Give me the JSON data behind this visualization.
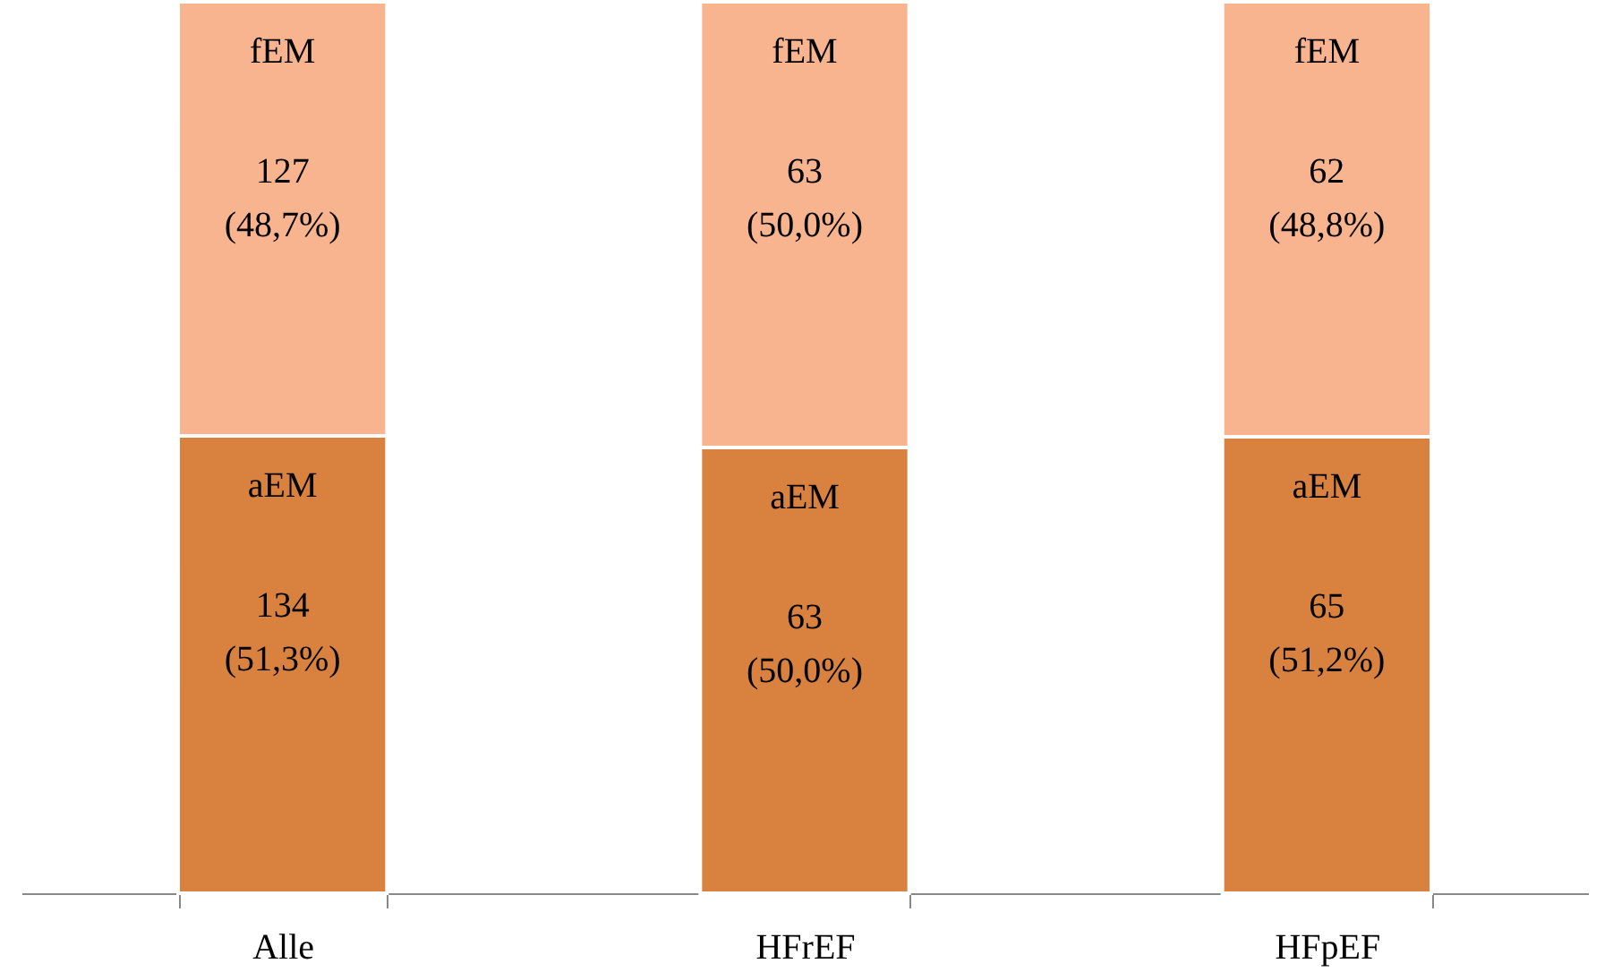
{
  "chart_data": {
    "type": "bar",
    "stacked": true,
    "ylim": [
      0,
      100
    ],
    "tick_labels": "x",
    "categories": [
      "Alle",
      "HFrEF",
      "HFpEF"
    ],
    "series": [
      {
        "name": "aEM",
        "color": "#d9823f",
        "values": [
          51.3,
          50.0,
          51.2
        ],
        "value_labels": [
          "134\n(51,3%)",
          "63\n(50,0%)",
          "65\n(51,2%)"
        ]
      },
      {
        "name": "fEM",
        "color": "#f8b48f",
        "values": [
          48.7,
          50.0,
          48.8
        ],
        "value_labels": [
          "127\n(48,7%)",
          "63\n(50,0%)",
          "62\n(48,8%)"
        ]
      }
    ]
  }
}
